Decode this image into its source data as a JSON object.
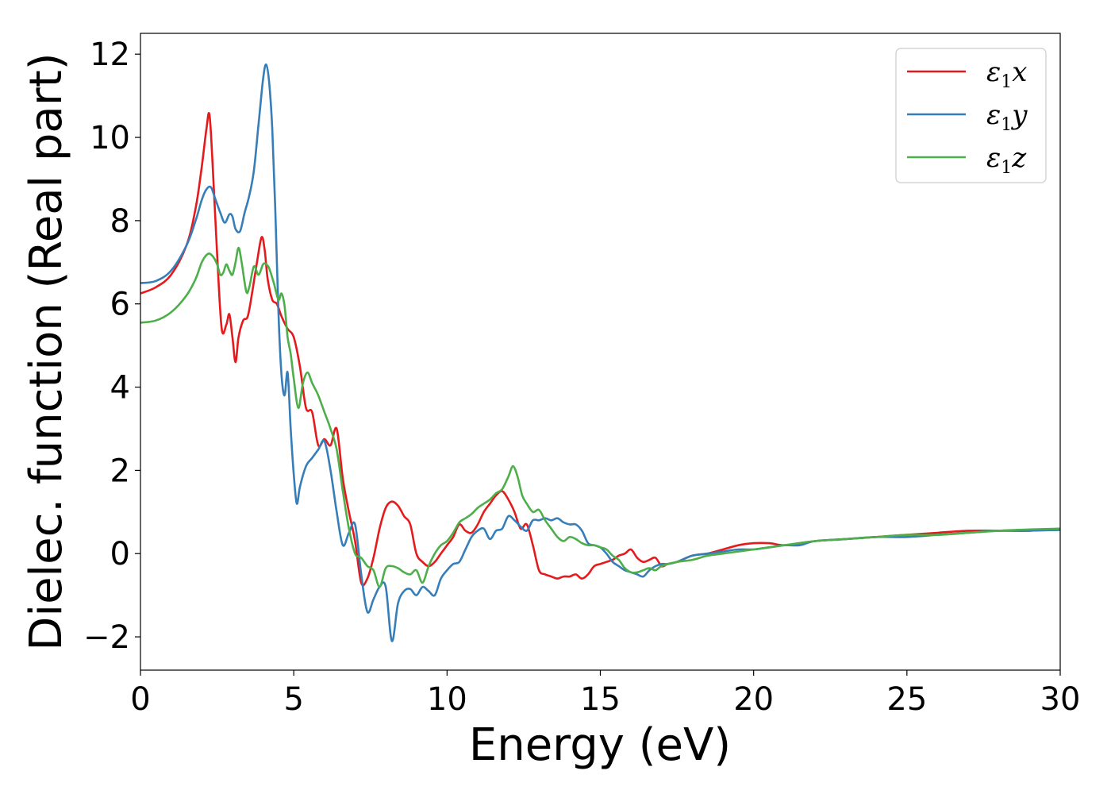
{
  "chart_data": {
    "type": "line",
    "xlabel": "Energy (eV)",
    "ylabel": "Dielec. function (Real part)",
    "xlim": [
      0,
      30
    ],
    "ylim": [
      -2.8,
      12.5
    ],
    "xticks": [
      0,
      5,
      10,
      15,
      20,
      25,
      30
    ],
    "xtick_labels": [
      "0",
      "5",
      "10",
      "15",
      "20",
      "25",
      "30"
    ],
    "yticks": [
      -2,
      0,
      2,
      4,
      6,
      8,
      10,
      12
    ],
    "ytick_labels": [
      "−2",
      "0",
      "2",
      "4",
      "6",
      "8",
      "10",
      "12"
    ],
    "grid": false,
    "legend_position": "top-right",
    "series": [
      {
        "name": "ε1x",
        "legend_main": "ε",
        "legend_sub": "1",
        "legend_var": "x",
        "color": "#e41a1c",
        "x": [
          0,
          0.5,
          1.0,
          1.5,
          1.8,
          2.0,
          2.15,
          2.25,
          2.35,
          2.5,
          2.65,
          2.8,
          2.9,
          3.0,
          3.1,
          3.2,
          3.35,
          3.5,
          3.65,
          3.8,
          3.95,
          4.05,
          4.15,
          4.3,
          4.45,
          4.6,
          4.8,
          5.0,
          5.2,
          5.4,
          5.6,
          5.8,
          6.0,
          6.2,
          6.4,
          6.6,
          6.8,
          7.0,
          7.2,
          7.4,
          7.6,
          7.8,
          8.0,
          8.2,
          8.4,
          8.6,
          8.8,
          9.0,
          9.2,
          9.4,
          9.6,
          9.8,
          10.0,
          10.2,
          10.4,
          10.6,
          10.8,
          11.0,
          11.2,
          11.4,
          11.6,
          11.8,
          12.0,
          12.2,
          12.4,
          12.6,
          12.8,
          13.0,
          13.2,
          13.4,
          13.6,
          13.8,
          14.0,
          14.2,
          14.4,
          14.6,
          14.8,
          15.0,
          15.2,
          15.4,
          15.6,
          15.8,
          16.0,
          16.2,
          16.4,
          16.6,
          16.8,
          17.0,
          17.2,
          17.5,
          18.0,
          18.5,
          19.0,
          19.5,
          20.0,
          20.5,
          21.0,
          21.5,
          22.0,
          23.0,
          24.0,
          25.0,
          26.0,
          27.0,
          28.0,
          29.0,
          30.0
        ],
        "y": [
          6.25,
          6.4,
          6.7,
          7.4,
          8.3,
          9.3,
          10.2,
          10.55,
          9.4,
          7.2,
          5.4,
          5.5,
          5.75,
          5.2,
          4.6,
          5.2,
          5.6,
          5.7,
          6.3,
          7.0,
          7.6,
          7.3,
          6.6,
          6.1,
          6.0,
          5.7,
          5.4,
          5.2,
          4.5,
          3.5,
          3.4,
          2.6,
          2.75,
          2.6,
          3.0,
          1.8,
          1.0,
          0.3,
          -0.7,
          -0.6,
          -0.1,
          0.6,
          1.1,
          1.25,
          1.15,
          0.9,
          0.7,
          0.0,
          -0.2,
          -0.3,
          -0.2,
          0.0,
          0.2,
          0.4,
          0.7,
          0.55,
          0.5,
          0.7,
          1.0,
          1.2,
          1.4,
          1.5,
          1.3,
          1.0,
          0.6,
          0.7,
          0.2,
          -0.4,
          -0.5,
          -0.55,
          -0.6,
          -0.55,
          -0.55,
          -0.5,
          -0.6,
          -0.5,
          -0.3,
          -0.25,
          -0.2,
          -0.15,
          -0.05,
          0.0,
          0.1,
          -0.1,
          -0.2,
          -0.15,
          -0.1,
          -0.3,
          -0.25,
          -0.2,
          -0.05,
          0.0,
          0.1,
          0.2,
          0.25,
          0.25,
          0.2,
          0.25,
          0.3,
          0.35,
          0.4,
          0.45,
          0.5,
          0.55,
          0.55,
          0.55,
          0.6
        ]
      },
      {
        "name": "ε1y",
        "legend_main": "ε",
        "legend_sub": "1",
        "legend_var": "y",
        "color": "#377eb8",
        "x": [
          0,
          0.5,
          1.0,
          1.5,
          1.8,
          2.0,
          2.15,
          2.3,
          2.45,
          2.6,
          2.75,
          2.9,
          3.0,
          3.1,
          3.25,
          3.4,
          3.55,
          3.7,
          3.85,
          4.0,
          4.1,
          4.2,
          4.3,
          4.4,
          4.5,
          4.6,
          4.7,
          4.8,
          4.9,
          5.0,
          5.1,
          5.2,
          5.4,
          5.6,
          5.8,
          6.0,
          6.2,
          6.4,
          6.6,
          6.8,
          7.0,
          7.2,
          7.4,
          7.6,
          7.8,
          8.0,
          8.2,
          8.4,
          8.6,
          8.8,
          9.0,
          9.2,
          9.4,
          9.6,
          9.8,
          10.0,
          10.2,
          10.4,
          10.6,
          10.8,
          11.0,
          11.2,
          11.4,
          11.6,
          11.8,
          12.0,
          12.2,
          12.4,
          12.6,
          12.8,
          13.0,
          13.2,
          13.4,
          13.6,
          13.8,
          14.0,
          14.2,
          14.4,
          14.6,
          14.8,
          15.0,
          15.2,
          15.4,
          15.6,
          15.8,
          16.0,
          16.2,
          16.4,
          16.6,
          16.8,
          17.0,
          17.2,
          17.5,
          18.0,
          18.5,
          19.0,
          19.5,
          20.0,
          20.5,
          21.0,
          21.5,
          22.0,
          23.0,
          24.0,
          25.0,
          26.0,
          27.0,
          28.0,
          29.0,
          30.0
        ],
        "y": [
          6.5,
          6.55,
          6.8,
          7.4,
          8.0,
          8.5,
          8.75,
          8.8,
          8.5,
          8.2,
          7.95,
          8.15,
          8.1,
          7.8,
          7.75,
          8.2,
          8.6,
          9.2,
          10.3,
          11.4,
          11.75,
          11.3,
          10.2,
          8.2,
          5.8,
          4.3,
          3.8,
          4.35,
          3.0,
          1.9,
          1.2,
          1.6,
          2.1,
          2.3,
          2.5,
          2.7,
          2.0,
          1.0,
          0.2,
          0.5,
          0.7,
          -0.5,
          -1.4,
          -1.1,
          -0.8,
          -0.8,
          -2.1,
          -1.2,
          -0.9,
          -0.85,
          -1.0,
          -0.8,
          -0.9,
          -1.0,
          -0.6,
          -0.4,
          -0.25,
          -0.2,
          0.1,
          0.4,
          0.55,
          0.6,
          0.35,
          0.55,
          0.6,
          0.9,
          0.8,
          0.65,
          0.55,
          0.8,
          0.8,
          0.85,
          0.8,
          0.85,
          0.75,
          0.7,
          0.7,
          0.55,
          0.25,
          0.2,
          0.15,
          0.0,
          -0.2,
          -0.3,
          -0.4,
          -0.45,
          -0.5,
          -0.55,
          -0.4,
          -0.3,
          -0.25,
          -0.25,
          -0.2,
          -0.05,
          0.0,
          0.05,
          0.1,
          0.1,
          0.15,
          0.2,
          0.2,
          0.3,
          0.35,
          0.4,
          0.4,
          0.45,
          0.5,
          0.55,
          0.55,
          0.57
        ]
      },
      {
        "name": "ε1z",
        "legend_main": "ε",
        "legend_sub": "1",
        "legend_var": "z",
        "color": "#4daf4a",
        "x": [
          0,
          0.5,
          1.0,
          1.5,
          1.8,
          2.0,
          2.2,
          2.35,
          2.5,
          2.6,
          2.7,
          2.8,
          2.9,
          3.0,
          3.1,
          3.2,
          3.3,
          3.45,
          3.55,
          3.7,
          3.85,
          4.0,
          4.1,
          4.2,
          4.35,
          4.5,
          4.6,
          4.7,
          4.8,
          4.9,
          5.0,
          5.15,
          5.3,
          5.45,
          5.6,
          5.8,
          6.0,
          6.2,
          6.4,
          6.6,
          6.8,
          7.0,
          7.2,
          7.4,
          7.6,
          7.8,
          8.0,
          8.2,
          8.4,
          8.6,
          8.8,
          9.0,
          9.2,
          9.4,
          9.6,
          9.8,
          10.0,
          10.2,
          10.4,
          10.6,
          10.8,
          11.0,
          11.2,
          11.4,
          11.6,
          11.8,
          12.0,
          12.15,
          12.3,
          12.45,
          12.6,
          12.8,
          13.0,
          13.2,
          13.4,
          13.6,
          13.8,
          14.0,
          14.2,
          14.4,
          14.6,
          14.8,
          15.0,
          15.2,
          15.4,
          15.6,
          15.8,
          16.0,
          16.2,
          16.4,
          16.6,
          16.8,
          17.0,
          17.5,
          18.0,
          18.5,
          19.0,
          19.5,
          20.0,
          20.5,
          21.0,
          22.0,
          23.0,
          24.0,
          25.0,
          26.0,
          27.0,
          28.0,
          29.0,
          30.0
        ],
        "y": [
          5.55,
          5.6,
          5.8,
          6.2,
          6.6,
          7.0,
          7.2,
          7.15,
          6.95,
          6.7,
          6.75,
          6.95,
          6.8,
          6.7,
          7.0,
          7.35,
          7.0,
          6.3,
          6.4,
          6.9,
          6.7,
          6.95,
          6.95,
          6.85,
          6.5,
          6.1,
          6.25,
          5.95,
          5.2,
          4.8,
          4.2,
          3.5,
          4.1,
          4.35,
          4.1,
          3.8,
          3.4,
          3.0,
          2.5,
          1.5,
          0.6,
          0.0,
          -0.1,
          -0.3,
          -0.4,
          -0.8,
          -0.35,
          -0.3,
          -0.35,
          -0.45,
          -0.5,
          -0.4,
          -0.7,
          -0.3,
          0.0,
          0.2,
          0.3,
          0.5,
          0.75,
          0.85,
          0.95,
          1.1,
          1.2,
          1.3,
          1.45,
          1.55,
          1.85,
          2.1,
          1.85,
          1.4,
          1.2,
          1.0,
          1.05,
          0.8,
          0.6,
          0.4,
          0.3,
          0.4,
          0.35,
          0.25,
          0.2,
          0.2,
          0.15,
          0.1,
          -0.05,
          -0.15,
          -0.35,
          -0.45,
          -0.45,
          -0.4,
          -0.35,
          -0.4,
          -0.3,
          -0.2,
          -0.15,
          -0.05,
          0.0,
          0.05,
          0.1,
          0.15,
          0.2,
          0.3,
          0.35,
          0.4,
          0.45,
          0.45,
          0.5,
          0.55,
          0.58,
          0.6
        ]
      }
    ]
  }
}
